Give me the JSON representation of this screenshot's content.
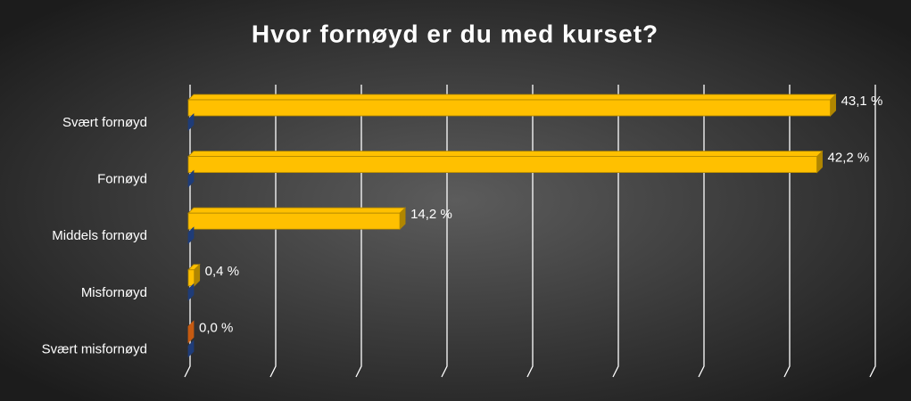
{
  "chart_data": {
    "type": "bar3d-horizontal",
    "title": "Hvor fornøyd er du med kurset?",
    "categories": [
      "Svært fornøyd",
      "Fornøyd",
      "Middels fornøyd",
      "Misfornøyd",
      "Svært misfornøyd"
    ],
    "series": [
      {
        "color": "#ffc000",
        "values": [
          43.1,
          42.2,
          14.2,
          0.4,
          0.0
        ],
        "value_labels": [
          "43,1 %",
          "42,2 %",
          "14,2 %",
          "0,4 %",
          "0,0 %"
        ]
      },
      {
        "color": "#2f55a4",
        "values": [
          0,
          0,
          0,
          0,
          0
        ]
      }
    ],
    "xlim": [
      0,
      46
    ],
    "xticks": [
      0,
      5.75,
      11.5,
      17.25,
      23,
      28.75,
      34.5,
      40.25,
      46
    ],
    "grid": true
  }
}
